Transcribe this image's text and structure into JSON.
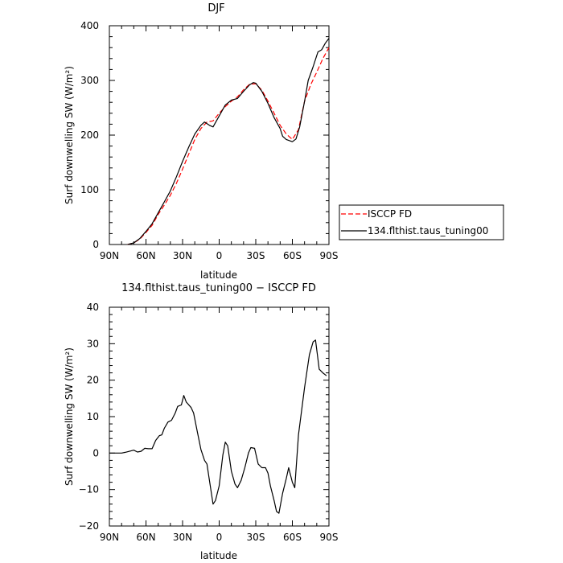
{
  "chart_data": [
    {
      "type": "line",
      "title": "DJF",
      "xlabel": "latitude",
      "ylabel": "Surf downwelling SW (W/m²)",
      "xlim": [
        90,
        -90
      ],
      "ylim": [
        0,
        400
      ],
      "x_tick_values": [
        90,
        60,
        30,
        0,
        -30,
        -60,
        -90
      ],
      "x_tick_labels": [
        "90N",
        "60N",
        "30N",
        "0",
        "30S",
        "60S",
        "90S"
      ],
      "y_tick_values": [
        0,
        100,
        200,
        300,
        400
      ],
      "y_tick_labels": [
        "0",
        "100",
        "200",
        "300",
        "400"
      ],
      "legend_position": "right",
      "series": [
        {
          "name": "ISCCP FD",
          "color": "#ff0000",
          "dash": "dashed",
          "points": [
            [
              75,
              0
            ],
            [
              70,
              3
            ],
            [
              65,
              10
            ],
            [
              60,
              22
            ],
            [
              55,
              35
            ],
            [
              50,
              55
            ],
            [
              45,
              72
            ],
            [
              40,
              90
            ],
            [
              35,
              112
            ],
            [
              30,
              138
            ],
            [
              25,
              165
            ],
            [
              20,
              192
            ],
            [
              15,
              212
            ],
            [
              10,
              224
            ],
            [
              5,
              226
            ],
            [
              0,
              240
            ],
            [
              -5,
              252
            ],
            [
              -10,
              262
            ],
            [
              -15,
              270
            ],
            [
              -20,
              283
            ],
            [
              -25,
              293
            ],
            [
              -30,
              294
            ],
            [
              -35,
              282
            ],
            [
              -40,
              262
            ],
            [
              -45,
              240
            ],
            [
              -50,
              218
            ],
            [
              -55,
              202
            ],
            [
              -60,
              192
            ],
            [
              -65,
              210
            ],
            [
              -70,
              262
            ],
            [
              -75,
              292
            ],
            [
              -80,
              315
            ],
            [
              -85,
              340
            ],
            [
              -90,
              360
            ]
          ]
        },
        {
          "name": "134.flthist.taus_tuning00",
          "color": "#000000",
          "dash": "solid",
          "points": [
            [
              75,
              0
            ],
            [
              70,
              3
            ],
            [
              65,
              11
            ],
            [
              60,
              24
            ],
            [
              55,
              38
            ],
            [
              50,
              58
            ],
            [
              45,
              78
            ],
            [
              40,
              98
            ],
            [
              35,
              124
            ],
            [
              30,
              152
            ],
            [
              25,
              178
            ],
            [
              20,
              202
            ],
            [
              15,
              218
            ],
            [
              12,
              224
            ],
            [
              8,
              218
            ],
            [
              5,
              215
            ],
            [
              0,
              235
            ],
            [
              -5,
              255
            ],
            [
              -10,
              264
            ],
            [
              -15,
              267
            ],
            [
              -20,
              280
            ],
            [
              -25,
              292
            ],
            [
              -28,
              296
            ],
            [
              -30,
              295
            ],
            [
              -35,
              280
            ],
            [
              -40,
              258
            ],
            [
              -45,
              232
            ],
            [
              -50,
              212
            ],
            [
              -52,
              198
            ],
            [
              -55,
              192
            ],
            [
              -60,
              188
            ],
            [
              -63,
              193
            ],
            [
              -66,
              215
            ],
            [
              -70,
              262
            ],
            [
              -73,
              300
            ],
            [
              -77,
              325
            ],
            [
              -81,
              352
            ],
            [
              -84,
              356
            ],
            [
              -87,
              368
            ],
            [
              -90,
              377
            ]
          ]
        }
      ]
    },
    {
      "type": "line",
      "title": "134.flthist.taus_tuning00 − ISCCP FD",
      "xlabel": "latitude",
      "ylabel": "Surf downwelling SW (W/m²)",
      "xlim": [
        90,
        -90
      ],
      "ylim": [
        -20,
        40
      ],
      "x_tick_values": [
        90,
        60,
        30,
        0,
        -30,
        -60,
        -90
      ],
      "x_tick_labels": [
        "90N",
        "60N",
        "30N",
        "0",
        "30S",
        "60S",
        "90S"
      ],
      "y_tick_values": [
        -20,
        -10,
        0,
        10,
        20,
        30,
        40
      ],
      "y_tick_labels": [
        "−20",
        "−10",
        "0",
        "10",
        "20",
        "30",
        "40"
      ],
      "series": [
        {
          "color": "#000000",
          "dash": "solid",
          "points": [
            [
              90,
              0
            ],
            [
              80,
              0
            ],
            [
              77,
              0.2
            ],
            [
              70,
              0.8
            ],
            [
              67,
              0.3
            ],
            [
              64,
              0.5
            ],
            [
              61,
              1.3
            ],
            [
              58,
              1.2
            ],
            [
              55,
              1.2
            ],
            [
              52,
              3.5
            ],
            [
              49,
              4.8
            ],
            [
              47,
              5.0
            ],
            [
              45,
              6.8
            ],
            [
              42,
              8.5
            ],
            [
              39,
              9.0
            ],
            [
              36,
              11
            ],
            [
              34,
              12.8
            ],
            [
              31,
              13.2
            ],
            [
              29,
              15.8
            ],
            [
              27,
              14
            ],
            [
              23,
              12.5
            ],
            [
              21,
              11
            ],
            [
              18,
              6
            ],
            [
              15,
              1
            ],
            [
              12,
              -2
            ],
            [
              10,
              -3
            ],
            [
              8,
              -7.5
            ],
            [
              5,
              -14
            ],
            [
              3,
              -13
            ],
            [
              0,
              -9
            ],
            [
              -3,
              -0.5
            ],
            [
              -5,
              3
            ],
            [
              -7,
              2
            ],
            [
              -10,
              -5
            ],
            [
              -13,
              -8.5
            ],
            [
              -15,
              -9.5
            ],
            [
              -18,
              -7.5
            ],
            [
              -21,
              -4
            ],
            [
              -24,
              0
            ],
            [
              -26,
              1.5
            ],
            [
              -29,
              1.3
            ],
            [
              -32,
              -3
            ],
            [
              -35,
              -4
            ],
            [
              -38,
              -4
            ],
            [
              -40,
              -5.5
            ],
            [
              -42,
              -9
            ],
            [
              -45,
              -13
            ],
            [
              -47,
              -16
            ],
            [
              -49,
              -16.5
            ],
            [
              -52,
              -11
            ],
            [
              -55,
              -7
            ],
            [
              -57,
              -4
            ],
            [
              -60,
              -8
            ],
            [
              -62,
              -9.5
            ],
            [
              -65,
              5
            ],
            [
              -70,
              18
            ],
            [
              -74,
              27
            ],
            [
              -77,
              30.5
            ],
            [
              -79,
              31
            ],
            [
              -82,
              23
            ],
            [
              -85,
              22
            ],
            [
              -88,
              21.2
            ]
          ]
        }
      ]
    }
  ]
}
